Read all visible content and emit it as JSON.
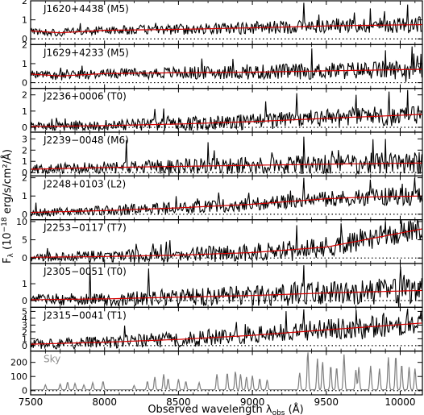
{
  "figure": {
    "ylabel_prefix": "F",
    "ylabel_sub": "λ",
    "ylabel_suffix": " (10",
    "ylabel_exp": "−18",
    "ylabel_tail": " erg/s/cm²/Å)",
    "xlabel_prefix": "Observed wavelength λ",
    "xlabel_sub": "obs",
    "xlabel_suffix": " (Å)"
  },
  "chart_data": {
    "type": "line",
    "xlim": [
      7500,
      10150
    ],
    "x_ticks": [
      7500,
      8000,
      8500,
      9000,
      9500,
      10000
    ],
    "x_tick_labels": [
      "7500",
      "8000",
      "8500",
      "9000",
      "9500",
      "10000"
    ],
    "panels": [
      {
        "label": "J1620+4438 (M5)",
        "ylim": [
          -0.3,
          2.0
        ],
        "yticks": [
          0,
          1,
          2
        ],
        "zero_line": true,
        "fit": [
          [
            7500,
            0.42
          ],
          [
            7700,
            0.32
          ],
          [
            8000,
            0.45
          ],
          [
            8500,
            0.5
          ],
          [
            9000,
            0.58
          ],
          [
            9500,
            0.68
          ],
          [
            10150,
            0.75
          ]
        ],
        "noise": 0.3,
        "seed": 11,
        "spikes": [
          [
            9350,
            1.9
          ],
          [
            9800,
            1.6
          ],
          [
            10050,
            1.8
          ]
        ]
      },
      {
        "label": "J1629+4233 (M5)",
        "ylim": [
          -0.3,
          2.0
        ],
        "yticks": [
          0,
          1,
          2
        ],
        "zero_line": true,
        "fit": [
          [
            7500,
            0.45
          ],
          [
            7700,
            0.35
          ],
          [
            8000,
            0.48
          ],
          [
            8500,
            0.52
          ],
          [
            9000,
            0.55
          ],
          [
            9500,
            0.62
          ],
          [
            10150,
            0.7
          ]
        ],
        "noise": 0.35,
        "seed": 23,
        "spikes": [
          [
            9400,
            1.8
          ],
          [
            9900,
            1.7
          ],
          [
            10080,
            1.9
          ]
        ]
      },
      {
        "label": "J2236+0006 (T0)",
        "ylim": [
          -0.3,
          2.4
        ],
        "yticks": [
          0,
          1,
          2
        ],
        "zero_line": true,
        "fit": [
          [
            7500,
            0.05
          ],
          [
            8000,
            0.1
          ],
          [
            8500,
            0.2
          ],
          [
            9000,
            0.35
          ],
          [
            9500,
            0.55
          ],
          [
            10150,
            0.8
          ]
        ],
        "noise": 0.45,
        "seed": 37,
        "spikes": [
          [
            9300,
            2.1
          ],
          [
            9700,
            2.0
          ],
          [
            10050,
            2.3
          ]
        ]
      },
      {
        "label": "J2239−0048 (M6)",
        "ylim": [
          -0.3,
          3.6
        ],
        "yticks": [
          0,
          1,
          2,
          3
        ],
        "zero_line": true,
        "fit": [
          [
            7500,
            0.3
          ],
          [
            8000,
            0.45
          ],
          [
            8500,
            0.55
          ],
          [
            9000,
            0.65
          ],
          [
            9500,
            0.75
          ],
          [
            10150,
            0.85
          ]
        ],
        "noise": 0.7,
        "seed": 41,
        "spikes": [
          [
            8150,
            2.9
          ],
          [
            8700,
            2.7
          ],
          [
            9350,
            3.2
          ],
          [
            9900,
            3.0
          ]
        ]
      },
      {
        "label": "J2248+0103 (L2)",
        "ylim": [
          -0.3,
          2.1
        ],
        "yticks": [
          0,
          1,
          2
        ],
        "zero_line": true,
        "fit": [
          [
            7500,
            0.1
          ],
          [
            8000,
            0.2
          ],
          [
            8500,
            0.35
          ],
          [
            9000,
            0.55
          ],
          [
            9500,
            0.85
          ],
          [
            9800,
            0.95
          ],
          [
            10150,
            1.0
          ]
        ],
        "noise": 0.35,
        "seed": 53,
        "spikes": [
          [
            9350,
            2.0
          ],
          [
            9800,
            1.9
          ],
          [
            10100,
            2.0
          ]
        ]
      },
      {
        "label": "J2253−0117 (T7)",
        "ylim": [
          -1.5,
          10.5
        ],
        "yticks": [
          0,
          5,
          10
        ],
        "zero_line": true,
        "fit": [
          [
            7500,
            0.2
          ],
          [
            8000,
            0.4
          ],
          [
            8500,
            0.8
          ],
          [
            9000,
            1.5
          ],
          [
            9500,
            3.0
          ],
          [
            10150,
            8.0
          ]
        ],
        "noise": 2.2,
        "seed": 67,
        "spikes": [
          [
            9300,
            9.0
          ],
          [
            9600,
            9.5
          ],
          [
            9900,
            10.0
          ]
        ]
      },
      {
        "label": "J2305−0051 (T0)",
        "ylim": [
          -0.4,
          2.2
        ],
        "yticks": [
          0,
          1
        ],
        "zero_line": true,
        "fit": [
          [
            7500,
            0.05
          ],
          [
            8000,
            0.1
          ],
          [
            8500,
            0.2
          ],
          [
            9000,
            0.3
          ],
          [
            9500,
            0.45
          ],
          [
            10150,
            0.6
          ]
        ],
        "noise": 0.55,
        "seed": 79,
        "spikes": [
          [
            7900,
            2.1
          ],
          [
            8300,
            1.9
          ],
          [
            9350,
            2.1
          ],
          [
            10000,
            2.0
          ]
        ]
      },
      {
        "label": "J2315−0041 (T1)",
        "ylim": [
          -0.8,
          5.6
        ],
        "yticks": [
          0,
          1,
          2,
          3,
          4,
          5
        ],
        "zero_line": true,
        "fit": [
          [
            7500,
            0.2
          ],
          [
            8000,
            0.5
          ],
          [
            8500,
            0.9
          ],
          [
            9000,
            1.5
          ],
          [
            9500,
            2.3
          ],
          [
            10150,
            3.3
          ]
        ],
        "noise": 1.2,
        "seed": 97,
        "spikes": [
          [
            9350,
            5.3
          ],
          [
            9700,
            5.2
          ],
          [
            10050,
            5.4
          ]
        ]
      },
      {
        "label": "Sky",
        "ylim": [
          -30,
          280
        ],
        "yticks": [
          0,
          100,
          200
        ],
        "zero_line": true,
        "sky": true,
        "lines": [
          [
            7600,
            35
          ],
          [
            7700,
            40
          ],
          [
            7750,
            55
          ],
          [
            7800,
            45
          ],
          [
            7860,
            35
          ],
          [
            7920,
            50
          ],
          [
            7990,
            60
          ],
          [
            8200,
            30
          ],
          [
            8290,
            60
          ],
          [
            8340,
            90
          ],
          [
            8400,
            110
          ],
          [
            8430,
            80
          ],
          [
            8500,
            75
          ],
          [
            8550,
            60
          ],
          [
            8640,
            50
          ],
          [
            8760,
            110
          ],
          [
            8830,
            120
          ],
          [
            8885,
            130
          ],
          [
            8920,
            110
          ],
          [
            8960,
            90
          ],
          [
            9000,
            100
          ],
          [
            9050,
            80
          ],
          [
            9100,
            70
          ],
          [
            9320,
            120
          ],
          [
            9375,
            270
          ],
          [
            9440,
            220
          ],
          [
            9475,
            200
          ],
          [
            9530,
            170
          ],
          [
            9570,
            160
          ],
          [
            9620,
            250
          ],
          [
            9700,
            140
          ],
          [
            9720,
            160
          ],
          [
            9800,
            170
          ],
          [
            9860,
            150
          ],
          [
            9920,
            230
          ],
          [
            9970,
            240
          ],
          [
            10010,
            180
          ],
          [
            10060,
            160
          ],
          [
            10100,
            150
          ]
        ]
      }
    ]
  },
  "colors": {
    "spectrum": "#000000",
    "fit": "#d60000",
    "sky": "#7f7f7f",
    "sky_label": "#8c8c8c",
    "axis": "#000000"
  }
}
